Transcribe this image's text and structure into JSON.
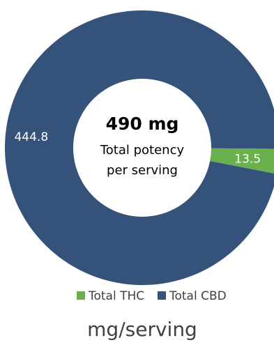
{
  "chart_data": {
    "type": "pie",
    "variant": "donut",
    "categories": [
      "Total THC",
      "Total CBD"
    ],
    "values": [
      13.5,
      444.8
    ],
    "value_labels": [
      "13.5",
      "444.8"
    ],
    "colors": [
      "#6ab04c",
      "#34527a"
    ],
    "center_text": {
      "title": "490 mg",
      "line1": "Total potency",
      "line2": "per serving"
    },
    "legend": {
      "placement": "bottom",
      "entries": [
        "Total THC",
        "Total CBD"
      ]
    },
    "footer": "mg/serving"
  }
}
